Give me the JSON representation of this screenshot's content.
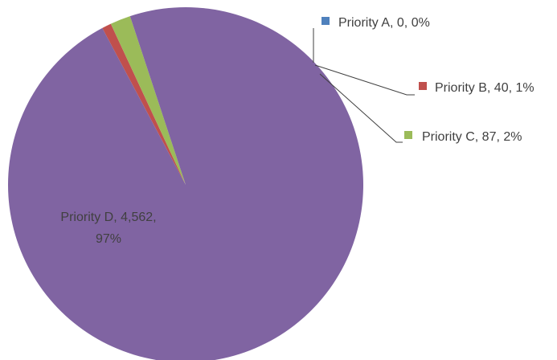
{
  "chart_data": {
    "type": "pie",
    "title": "",
    "legend": "none",
    "slices": [
      {
        "name": "Priority A",
        "value": 0,
        "value_label": "0",
        "percent_label": "0%",
        "color": "#4f81bd"
      },
      {
        "name": "Priority B",
        "value": 40,
        "value_label": "40",
        "percent_label": "1%",
        "color": "#c0504d"
      },
      {
        "name": "Priority C",
        "value": 87,
        "value_label": "87",
        "percent_label": "2%",
        "color": "#9bbb59"
      },
      {
        "name": "Priority D",
        "value": 4562,
        "value_label": "4,562",
        "percent_label": "97%",
        "color": "#8064a2"
      }
    ]
  }
}
